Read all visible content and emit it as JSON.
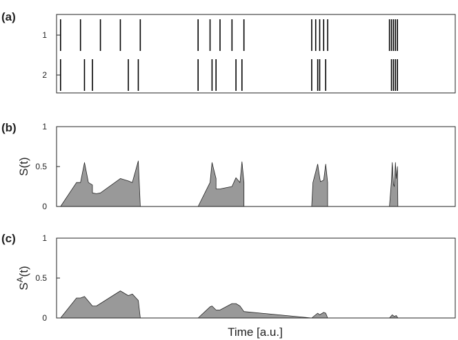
{
  "figure": {
    "panel_labels": [
      "(a)",
      "(b)",
      "(c)"
    ],
    "xlabel": "Time [a.u.]"
  },
  "chart_data": [
    {
      "type": "raster",
      "panel": "(a)",
      "yticks": [
        "1",
        "2"
      ],
      "xlim": [
        0,
        100
      ],
      "trains": [
        {
          "row": "1",
          "spikes": [
            1,
            6,
            11,
            16,
            21,
            35.5,
            38.5,
            41,
            44,
            47,
            64,
            65,
            66,
            67,
            68,
            83.5,
            84,
            84.5,
            85,
            85.5
          ]
        },
        {
          "row": "2",
          "spikes": [
            1,
            7,
            9,
            18,
            20.5,
            35.5,
            39,
            40,
            45,
            46.5,
            64,
            65.5,
            66,
            67.5,
            84,
            84.5,
            85,
            85.5
          ]
        }
      ]
    },
    {
      "type": "area",
      "panel": "(b)",
      "ylabel": "S(t)",
      "ylim": [
        0,
        1
      ],
      "yticks": [
        0,
        0.5,
        1
      ],
      "xlim": [
        0,
        100
      ],
      "color": "#999999",
      "x": [
        1,
        5,
        6,
        7,
        7,
        8,
        9,
        9,
        10,
        11,
        16,
        18,
        18,
        19,
        20.5,
        20.5,
        21,
        35.5,
        38.5,
        39,
        40,
        40,
        41,
        44,
        45,
        46,
        46.5,
        47,
        47,
        64,
        64.3,
        65.5,
        66,
        66.2,
        67,
        67.5,
        68,
        68,
        83.5,
        84,
        84.2,
        84.5,
        84.7,
        85,
        85.2,
        85.5,
        85.6
      ],
      "y": [
        0,
        0.3,
        0.3,
        0.55,
        0.55,
        0.3,
        0.27,
        0.17,
        0.16,
        0.17,
        0.35,
        0.32,
        0.32,
        0.3,
        0.57,
        0.57,
        0,
        0,
        0.3,
        0.55,
        0.35,
        0.22,
        0.22,
        0.25,
        0.36,
        0.3,
        0.56,
        0.3,
        0,
        0,
        0.3,
        0.53,
        0.36,
        0.31,
        0.33,
        0.53,
        0.3,
        0,
        0,
        0.32,
        0.55,
        0.28,
        0.25,
        0.55,
        0.35,
        0.5,
        0
      ]
    },
    {
      "type": "area",
      "panel": "(c)",
      "ylabel": "S^A(t)",
      "ylim": [
        0,
        1
      ],
      "yticks": [
        0,
        0.5,
        1
      ],
      "xlim": [
        0,
        100
      ],
      "color": "#999999",
      "x": [
        1,
        5,
        6,
        7,
        9,
        10,
        16,
        18,
        19,
        20.5,
        21,
        35.5,
        38.5,
        39,
        40,
        41,
        44,
        45,
        46,
        47,
        64,
        65.5,
        66,
        67,
        67.5,
        68,
        83.5,
        84.2,
        84.7,
        85.2,
        85.6
      ],
      "y": [
        0,
        0.25,
        0.25,
        0.27,
        0.15,
        0.15,
        0.34,
        0.28,
        0.3,
        0.22,
        0,
        0,
        0.14,
        0.15,
        0.1,
        0.1,
        0.18,
        0.18,
        0.15,
        0.08,
        0,
        0.06,
        0.04,
        0.07,
        0.06,
        0,
        0,
        0.04,
        0.02,
        0.03,
        0
      ]
    }
  ]
}
